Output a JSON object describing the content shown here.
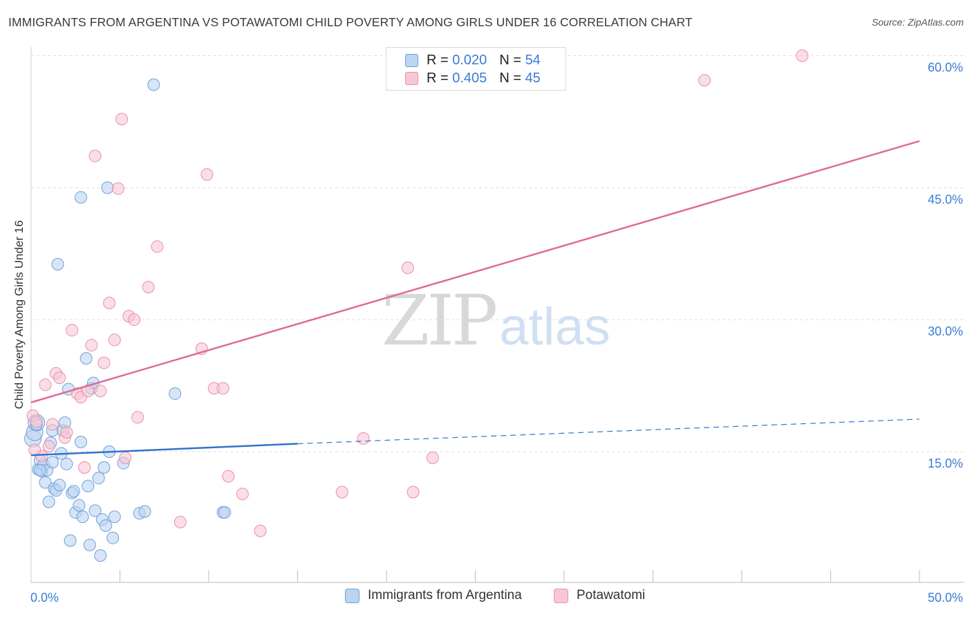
{
  "title": "IMMIGRANTS FROM ARGENTINA VS POTAWATOMI CHILD POVERTY AMONG GIRLS UNDER 16 CORRELATION CHART",
  "source": "Source: ZipAtlas.com",
  "watermark": {
    "zip": "ZIP",
    "atlas": "atlas"
  },
  "legend_top": [
    {
      "r_label": "R = ",
      "r_value": "0.020",
      "n_label": "N = ",
      "n_value": "54"
    },
    {
      "r_label": "R = ",
      "r_value": "0.405",
      "n_label": "N = ",
      "n_value": "45"
    }
  ],
  "colors": {
    "blue_fill": "#bcd3f2",
    "blue_stroke": "#6e9fd8",
    "blue_line": "#2f74c9",
    "pink_fill": "#f8c7d5",
    "pink_stroke": "#e88fab",
    "pink_line": "#e06b95",
    "tick_label": "#3a7bd5",
    "grid": "#dddddd"
  },
  "chart_data": {
    "type": "scatter",
    "title": "IMMIGRANTS FROM ARGENTINA VS POTAWATOMI CHILD POVERTY AMONG GIRLS UNDER 16 CORRELATION CHART",
    "xlabel": "",
    "ylabel": "Child Poverty Among Girls Under 16",
    "xlim": [
      0,
      50
    ],
    "ylim": [
      0,
      60
    ],
    "x_tick_labels": [
      "0.0%",
      "50.0%"
    ],
    "y_ticks": [
      15,
      30,
      45,
      60
    ],
    "y_tick_labels": [
      "15.0%",
      "30.0%",
      "45.0%",
      "60.0%"
    ],
    "grid": true,
    "legend_placement": "top-center",
    "series": [
      {
        "name": "Immigrants from Argentina",
        "color": "#bcd3f2",
        "trend": {
          "x": [
            0,
            15
          ],
          "y": [
            14.6,
            15.9
          ],
          "dashed_to": [
            50,
            18.7
          ]
        },
        "points": [
          [
            0.1,
            16.5
          ],
          [
            0.2,
            17.2
          ],
          [
            0.3,
            18.3
          ],
          [
            0.4,
            13.0
          ],
          [
            0.5,
            14.0
          ],
          [
            0.6,
            12.8
          ],
          [
            0.7,
            13.5
          ],
          [
            0.8,
            11.5
          ],
          [
            0.9,
            12.9
          ],
          [
            1.0,
            9.3
          ],
          [
            1.1,
            16.0
          ],
          [
            1.2,
            17.4
          ],
          [
            1.3,
            10.8
          ],
          [
            1.4,
            10.6
          ],
          [
            1.5,
            36.3
          ],
          [
            1.6,
            11.2
          ],
          [
            1.7,
            14.8
          ],
          [
            1.8,
            17.4
          ],
          [
            1.9,
            18.3
          ],
          [
            2.0,
            13.6
          ],
          [
            2.1,
            22.1
          ],
          [
            2.2,
            4.9
          ],
          [
            2.3,
            10.3
          ],
          [
            2.4,
            10.5
          ],
          [
            2.5,
            8.1
          ],
          [
            2.7,
            8.9
          ],
          [
            2.8,
            16.1
          ],
          [
            2.9,
            7.6
          ],
          [
            3.1,
            25.6
          ],
          [
            3.2,
            11.1
          ],
          [
            3.3,
            4.4
          ],
          [
            3.4,
            22.2
          ],
          [
            3.5,
            22.8
          ],
          [
            3.6,
            8.3
          ],
          [
            3.8,
            12.0
          ],
          [
            3.9,
            3.2
          ],
          [
            4.0,
            7.3
          ],
          [
            4.1,
            13.2
          ],
          [
            4.2,
            6.6
          ],
          [
            4.3,
            45.0
          ],
          [
            4.4,
            15.0
          ],
          [
            4.6,
            5.2
          ],
          [
            4.7,
            7.6
          ],
          [
            5.2,
            13.7
          ],
          [
            6.1,
            8.0
          ],
          [
            6.4,
            8.2
          ],
          [
            6.9,
            56.7
          ],
          [
            8.1,
            21.6
          ],
          [
            10.8,
            8.1
          ],
          [
            10.9,
            8.1
          ],
          [
            2.8,
            43.9
          ],
          [
            0.3,
            18.1
          ],
          [
            0.5,
            12.9
          ],
          [
            1.2,
            13.8
          ]
        ]
      },
      {
        "name": "Potawatomi",
        "color": "#f8c7d5",
        "trend": {
          "x": [
            0,
            50
          ],
          "y": [
            20.6,
            50.3
          ]
        },
        "points": [
          [
            0.1,
            19.1
          ],
          [
            0.3,
            18.4
          ],
          [
            0.6,
            14.5
          ],
          [
            0.8,
            22.6
          ],
          [
            1.0,
            15.6
          ],
          [
            1.2,
            18.1
          ],
          [
            1.4,
            23.9
          ],
          [
            1.6,
            23.4
          ],
          [
            1.9,
            16.6
          ],
          [
            2.0,
            17.2
          ],
          [
            2.3,
            28.8
          ],
          [
            2.6,
            21.6
          ],
          [
            2.8,
            21.2
          ],
          [
            3.0,
            13.2
          ],
          [
            3.2,
            21.9
          ],
          [
            3.4,
            27.1
          ],
          [
            3.6,
            48.6
          ],
          [
            3.9,
            21.9
          ],
          [
            4.1,
            25.1
          ],
          [
            4.4,
            31.9
          ],
          [
            4.7,
            27.7
          ],
          [
            4.9,
            44.9
          ],
          [
            5.1,
            52.8
          ],
          [
            5.3,
            14.3
          ],
          [
            5.5,
            30.4
          ],
          [
            5.8,
            30.0
          ],
          [
            6.0,
            18.9
          ],
          [
            6.6,
            33.7
          ],
          [
            7.1,
            38.3
          ],
          [
            8.4,
            7.0
          ],
          [
            9.6,
            26.7
          ],
          [
            9.9,
            46.5
          ],
          [
            10.3,
            22.2
          ],
          [
            10.8,
            22.2
          ],
          [
            11.1,
            12.2
          ],
          [
            11.9,
            10.2
          ],
          [
            12.9,
            6.0
          ],
          [
            17.5,
            10.4
          ],
          [
            18.7,
            16.5
          ],
          [
            21.2,
            35.9
          ],
          [
            21.5,
            10.4
          ],
          [
            22.6,
            14.3
          ],
          [
            37.9,
            57.2
          ],
          [
            43.4,
            60.0
          ],
          [
            0.2,
            15.2
          ]
        ]
      }
    ]
  },
  "legend_bottom": [
    "Immigrants from Argentina",
    "Potawatomi"
  ]
}
